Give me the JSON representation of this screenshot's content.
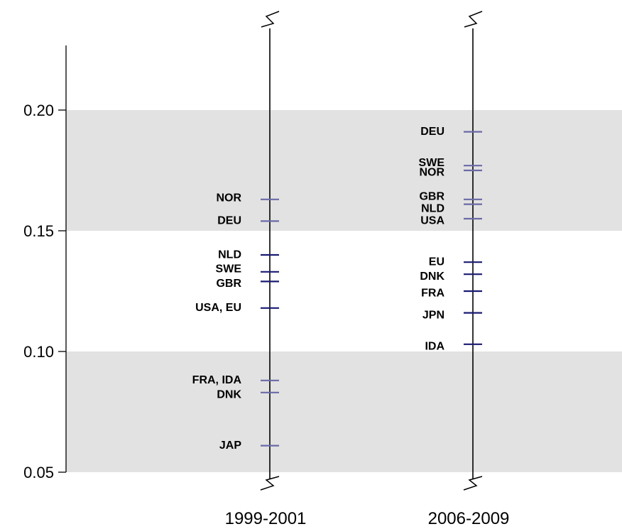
{
  "chart_data": {
    "type": "scatter",
    "title": "",
    "xlabel": "",
    "ylabel": "",
    "ylim": [
      0.05,
      0.23
    ],
    "yticks": [
      0.05,
      0.1,
      0.15,
      0.2
    ],
    "ytick_labels": [
      "0.05",
      "0.10",
      "0.15",
      "0.20"
    ],
    "shaded_bands": [
      [
        0.05,
        0.1
      ],
      [
        0.15,
        0.2
      ]
    ],
    "grid": false,
    "legend": "none",
    "colors": {
      "band": "#e2e2e2",
      "mark_light": "#6a6aa8",
      "mark_dark": "#1a1a72",
      "axis": "#000000"
    },
    "series": [
      {
        "period": "1999-2001",
        "points": [
          {
            "label": "NOR",
            "value": 0.163,
            "label_value": 0.164,
            "color": "#6a6aa8"
          },
          {
            "label": "DEU",
            "value": 0.154,
            "label_value": 0.1545,
            "color": "#6a6aa8"
          },
          {
            "label": "NLD",
            "value": 0.14,
            "label_value": 0.1405,
            "color": "#1a1a72"
          },
          {
            "label": "SWE",
            "value": 0.133,
            "label_value": 0.1345,
            "color": "#1a1a72"
          },
          {
            "label": "GBR",
            "value": 0.129,
            "label_value": 0.1285,
            "color": "#1a1a72"
          },
          {
            "label": "USA, EU",
            "value": 0.118,
            "label_value": 0.1185,
            "color": "#1a1a72"
          },
          {
            "label": "FRA, IDA",
            "value": 0.088,
            "label_value": 0.0885,
            "color": "#6a6aa8"
          },
          {
            "label": "DNK",
            "value": 0.083,
            "label_value": 0.0825,
            "color": "#6a6aa8"
          },
          {
            "label": "JAP",
            "value": 0.061,
            "label_value": 0.0615,
            "color": "#6a6aa8"
          }
        ]
      },
      {
        "period": "2006-2009",
        "points": [
          {
            "label": "DEU",
            "value": 0.191,
            "label_value": 0.1915,
            "color": "#6a6aa8"
          },
          {
            "label": "SWE",
            "value": 0.177,
            "label_value": 0.1785,
            "color": "#6a6aa8"
          },
          {
            "label": "NOR",
            "value": 0.175,
            "label_value": 0.1745,
            "color": "#6a6aa8"
          },
          {
            "label": "GBR",
            "value": 0.163,
            "label_value": 0.1645,
            "color": "#6a6aa8"
          },
          {
            "label": "NLD",
            "value": 0.161,
            "label_value": 0.1595,
            "color": "#6a6aa8"
          },
          {
            "label": "USA",
            "value": 0.155,
            "label_value": 0.1545,
            "color": "#6a6aa8"
          },
          {
            "label": "EU",
            "value": 0.137,
            "label_value": 0.1375,
            "color": "#1a1a72"
          },
          {
            "label": "DNK",
            "value": 0.132,
            "label_value": 0.1315,
            "color": "#1a1a72"
          },
          {
            "label": "FRA",
            "value": 0.125,
            "label_value": 0.1245,
            "color": "#1a1a72"
          },
          {
            "label": "JPN",
            "value": 0.116,
            "label_value": 0.1155,
            "color": "#1a1a72"
          },
          {
            "label": "IDA",
            "value": 0.103,
            "label_value": 0.1025,
            "color": "#1a1a72"
          }
        ]
      }
    ]
  }
}
